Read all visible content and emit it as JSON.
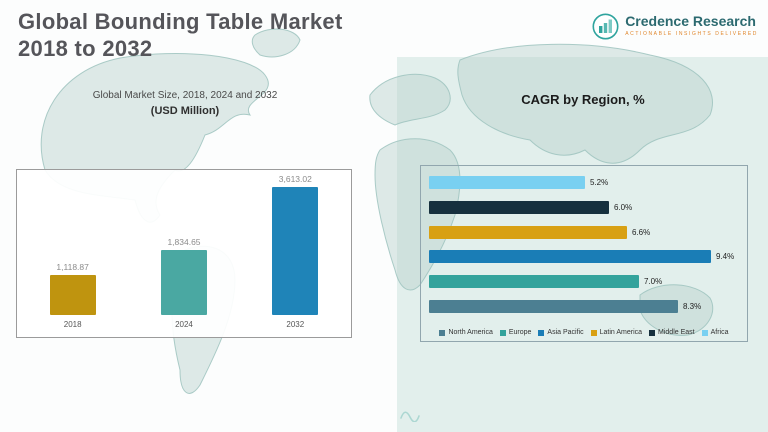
{
  "page": {
    "title_line1": "Global Bounding Table Market",
    "title_line2": "2018 to 2032"
  },
  "logo": {
    "brand": "Credence Research",
    "tagline": "Actionable Insights Delivered"
  },
  "colors": {
    "panel_mint": "#e2efec",
    "accent_teal": "#2fa49e"
  },
  "chart_data": [
    {
      "type": "bar",
      "orientation": "vertical",
      "title": "Global Market Size, 2018, 2024 and 2032",
      "subtitle": "(USD Million)",
      "categories": [
        "2018",
        "2024",
        "2032"
      ],
      "values": [
        1118.87,
        1834.65,
        3613.02
      ],
      "value_labels": [
        "1,118.87",
        "1,834.65",
        "3,613.02"
      ],
      "colors": [
        "#bf940f",
        "#4aa8a2",
        "#1f84b8"
      ],
      "ylim": [
        0,
        3613.02
      ],
      "grid": false,
      "legend_position": "none"
    },
    {
      "type": "bar",
      "orientation": "horizontal",
      "title": "CAGR by Region, %",
      "xlim": [
        0,
        9.4
      ],
      "grid": false,
      "legend_position": "bottom",
      "bars": [
        {
          "region": "Africa",
          "value": 5.2,
          "label": "5.2%",
          "color": "#79d0f1"
        },
        {
          "region": "Middle East",
          "value": 6.0,
          "label": "6.0%",
          "color": "#16303e"
        },
        {
          "region": "Latin America",
          "value": 6.6,
          "label": "6.6%",
          "color": "#d8a013"
        },
        {
          "region": "Asia Pacific",
          "value": 9.4,
          "label": "9.4%",
          "color": "#1a7db6"
        },
        {
          "region": "Europe",
          "value": 7.0,
          "label": "7.0%",
          "color": "#33a39c"
        },
        {
          "region": "North America",
          "value": 8.3,
          "label": "8.3%",
          "color": "#4c7f92"
        }
      ],
      "legend": [
        {
          "label": "North America",
          "color": "#4c7f92"
        },
        {
          "label": "Europe",
          "color": "#33a39c"
        },
        {
          "label": "Asia Pacific",
          "color": "#1a7db6"
        },
        {
          "label": "Latin America",
          "color": "#d8a013"
        },
        {
          "label": "Middle East",
          "color": "#16303e"
        },
        {
          "label": "Africa",
          "color": "#79d0f1"
        }
      ]
    }
  ]
}
